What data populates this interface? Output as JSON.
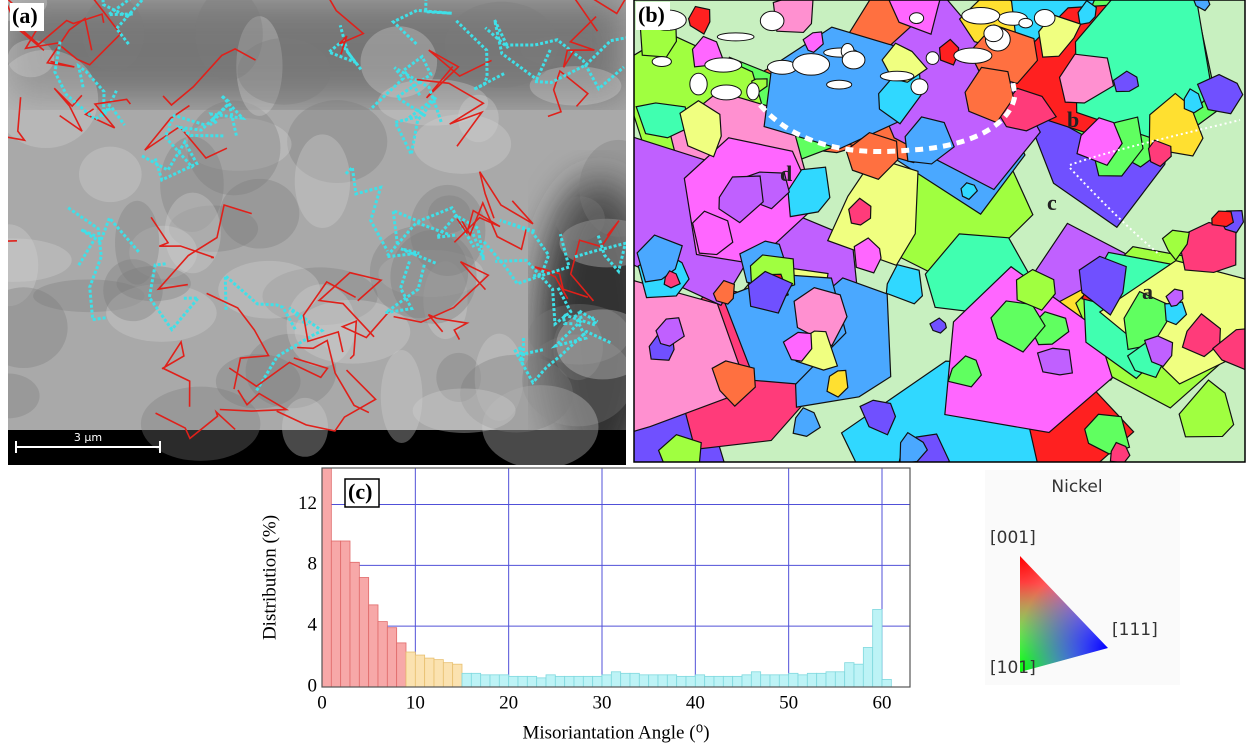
{
  "panel_a": {
    "label": "(a)",
    "scale_bar": "3 µm"
  },
  "panel_b": {
    "label": "(b)",
    "grain_labels": [
      "a",
      "b",
      "c",
      "d"
    ]
  },
  "ipf_legend": {
    "title": "Nickel",
    "top": "[001]",
    "right": "[111]",
    "bottom": "[101]"
  },
  "chart_data": {
    "type": "histogram",
    "panel_label": "(c)",
    "xlabel": "Misoriantation Angle (⁰)",
    "ylabel": "Distribution (%)",
    "xlim": [
      0,
      63
    ],
    "ylim": [
      0,
      14.4
    ],
    "xticks": [
      0,
      10,
      20,
      30,
      40,
      50,
      60
    ],
    "yticks": [
      0,
      4,
      8,
      12
    ],
    "grid": true,
    "grid_color": "#5050d8",
    "series": [
      {
        "color": "#f7a8a8",
        "edge": "#e06a6a",
        "bins": [
          0,
          1,
          2,
          3,
          4,
          5,
          6,
          7,
          8,
          9
        ],
        "counts": [
          14.4,
          9.6,
          9.6,
          8.2,
          7.2,
          5.4,
          4.3,
          3.9,
          2.9
        ]
      },
      {
        "color": "#fbe2b0",
        "edge": "#e8c070",
        "bins": [
          9,
          10,
          11,
          12,
          13,
          14,
          15
        ],
        "counts": [
          2.3,
          2.1,
          1.9,
          1.8,
          1.6,
          1.5
        ]
      },
      {
        "color": "#bdf3f6",
        "edge": "#7fd8de",
        "bins": [
          15,
          16,
          17,
          18,
          19,
          20,
          21,
          22,
          23,
          24,
          25,
          26,
          27,
          28,
          29,
          30,
          31,
          32,
          33,
          34,
          35,
          36,
          37,
          38,
          39,
          40,
          41,
          42,
          43,
          44,
          45,
          46,
          47,
          48,
          49,
          50,
          51,
          52,
          53,
          54,
          55,
          56,
          57,
          58,
          59,
          60,
          61
        ],
        "counts": [
          0.9,
          0.9,
          0.8,
          0.8,
          0.8,
          0.7,
          0.7,
          0.7,
          0.6,
          0.8,
          0.7,
          0.7,
          0.7,
          0.7,
          0.7,
          0.8,
          1.0,
          0.9,
          0.9,
          0.8,
          0.8,
          0.8,
          0.8,
          0.7,
          0.7,
          0.8,
          0.7,
          0.7,
          0.7,
          0.7,
          0.8,
          1.0,
          0.8,
          0.8,
          0.8,
          0.9,
          0.8,
          0.9,
          0.9,
          1.0,
          1.0,
          1.6,
          1.5,
          2.6,
          5.1,
          0.5
        ]
      }
    ]
  }
}
